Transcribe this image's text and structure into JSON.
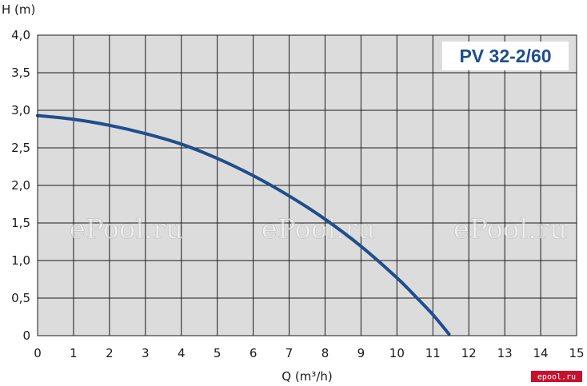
{
  "chart_data": {
    "type": "line",
    "title": "PV 32-2/60",
    "xlabel": "Q (m³/h)",
    "ylabel": "H (m)",
    "xlim": [
      0,
      15
    ],
    "ylim": [
      0,
      4
    ],
    "grid": true,
    "x_ticks": [
      "0",
      "1",
      "2",
      "3",
      "4",
      "5",
      "6",
      "7",
      "8",
      "9",
      "10",
      "11",
      "12",
      "13",
      "14",
      "15"
    ],
    "y_ticks": [
      "0",
      "0,5",
      "1,0",
      "1,5",
      "2,0",
      "2,5",
      "3,0",
      "3,5",
      "4,0"
    ],
    "series": [
      {
        "x": [
          0,
          1,
          2,
          3,
          4,
          5,
          6,
          7,
          8,
          9,
          10,
          10.5,
          11,
          11.45
        ],
        "y": [
          2.93,
          2.88,
          2.8,
          2.69,
          2.55,
          2.36,
          2.13,
          1.86,
          1.55,
          1.19,
          0.77,
          0.53,
          0.28,
          0.02
        ],
        "color": "#1f4e8c"
      }
    ],
    "colors": {
      "plot_background": "#dcdcdc",
      "grid": "#1a1a1a",
      "curve": "#1f4e8c",
      "title": "#1f4e8c"
    }
  },
  "watermarks": [
    "ePool.ru",
    "ePool.ru",
    "ePool.ru"
  ],
  "logo": {
    "text": "epool.ru",
    "color": "#c8102e"
  }
}
